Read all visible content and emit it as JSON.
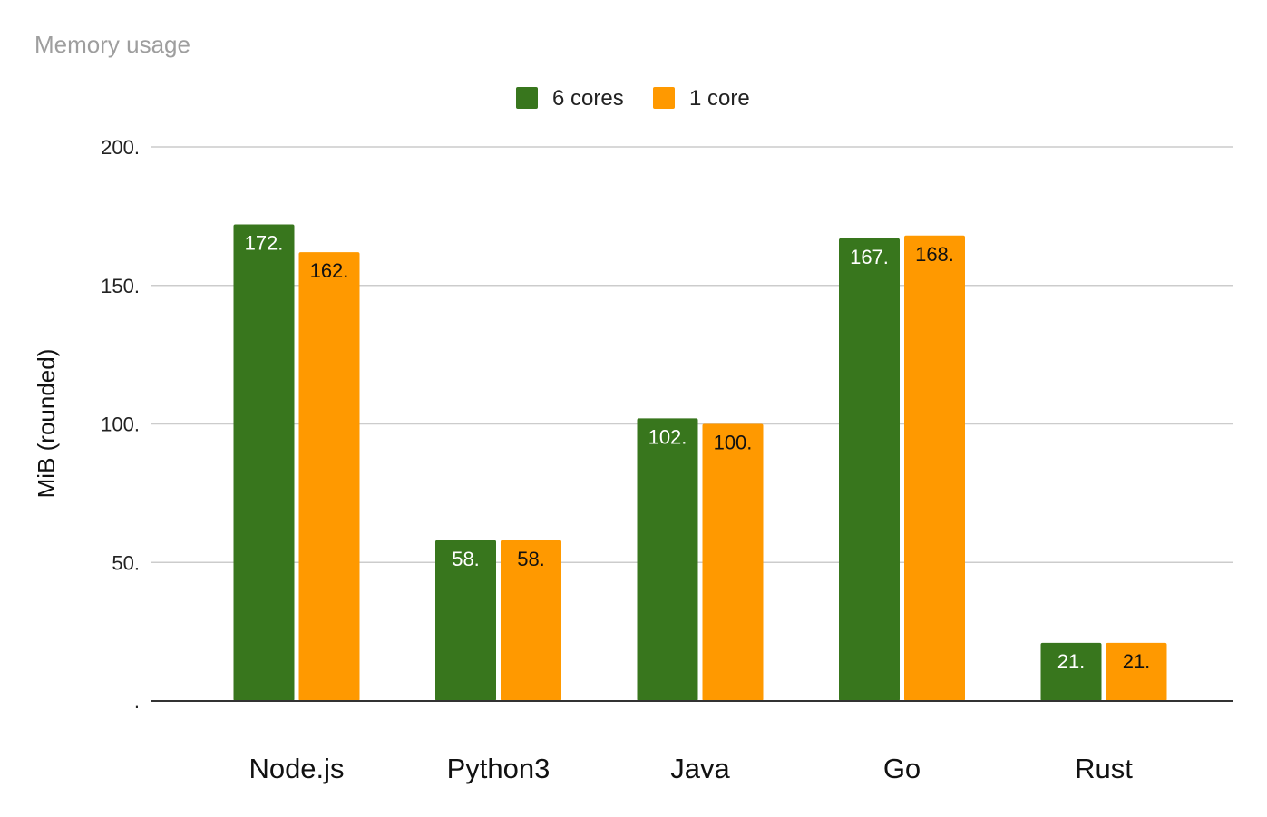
{
  "chart_data": {
    "type": "bar",
    "title": "Memory usage",
    "ylabel": "MiB (rounded)",
    "xlabel": "",
    "categories": [
      "Node.js",
      "Python3",
      "Java",
      "Go",
      "Rust"
    ],
    "series": [
      {
        "name": "6 cores",
        "color": "#38761d",
        "values": [
          172,
          58,
          102,
          167,
          21
        ],
        "data_labels": [
          "172.",
          "58.",
          "102.",
          "167.",
          "21."
        ],
        "label_color": "#ffffff"
      },
      {
        "name": "1 core",
        "color": "#ff9900",
        "values": [
          162,
          58,
          100,
          168,
          21
        ],
        "data_labels": [
          "162.",
          "58.",
          "100.",
          "168.",
          "21."
        ],
        "label_color": "#111111"
      }
    ],
    "ylim": [
      0,
      200
    ],
    "yticks": [
      0,
      50,
      100,
      150,
      200
    ],
    "ytick_labels": [
      ".",
      "50.",
      "100.",
      "150.",
      "200."
    ],
    "grid": true,
    "legend_position": "top-center"
  }
}
